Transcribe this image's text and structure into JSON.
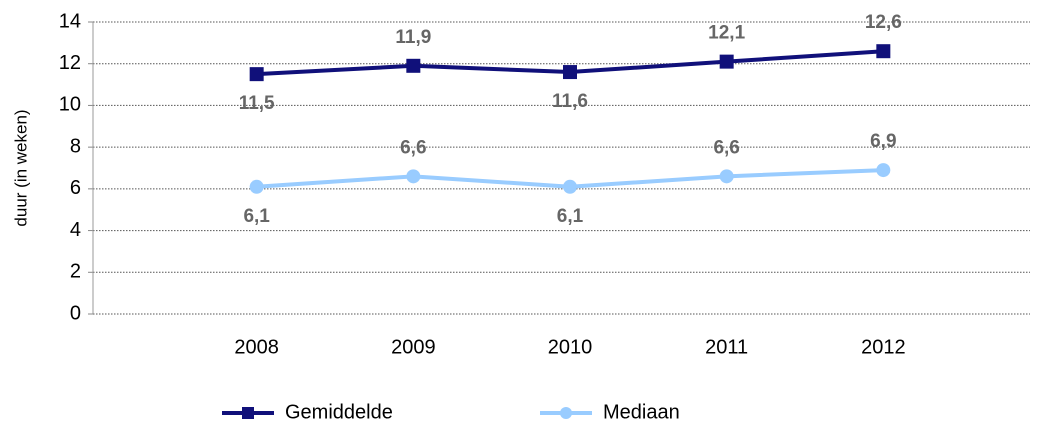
{
  "chart_data": {
    "type": "line",
    "y_label": "duur (in weken)",
    "categories": [
      "2008",
      "2009",
      "2010",
      "2011",
      "2012"
    ],
    "series": [
      {
        "name": "Gemiddelde",
        "color": "#10107a",
        "marker": "square",
        "values": [
          11.5,
          11.9,
          11.6,
          12.1,
          12.6
        ],
        "value_labels": [
          "11,5",
          "11,9",
          "11,6",
          "12,1",
          "12,6"
        ]
      },
      {
        "name": "Mediaan",
        "color": "#99ccff",
        "marker": "circle",
        "values": [
          6.1,
          6.6,
          6.1,
          6.6,
          6.9
        ],
        "value_labels": [
          "6,1",
          "6,6",
          "6,1",
          "6,6",
          "6,9"
        ]
      }
    ],
    "ylim": [
      0,
      14
    ],
    "yticks": [
      0,
      2,
      4,
      6,
      8,
      10,
      12,
      14
    ],
    "grid": true,
    "legend": "bottom"
  }
}
